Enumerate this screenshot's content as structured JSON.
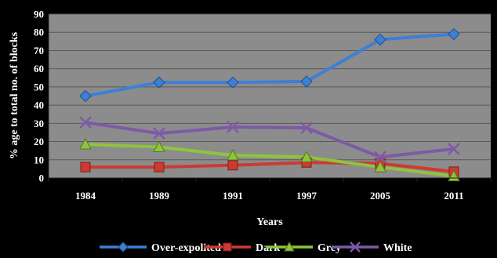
{
  "chart_data": {
    "type": "line",
    "categories": [
      "1984",
      "1989",
      "1991",
      "1997",
      "2005",
      "2011"
    ],
    "xlabel": "Years",
    "ylabel": "% age to total no. of blocks",
    "ylim": [
      0,
      90
    ],
    "yticks": [
      0,
      10,
      20,
      30,
      40,
      50,
      60,
      70,
      80,
      90
    ],
    "grid": true,
    "legend_position": "bottom",
    "series": [
      {
        "name": "Over-expolited",
        "values": [
          45,
          52.5,
          52.5,
          53,
          76,
          79
        ],
        "color": "#3e7fd6",
        "marker": "diamond"
      },
      {
        "name": "Dark",
        "values": [
          6,
          6,
          7,
          8.5,
          8,
          3.5
        ],
        "color": "#cc3a33",
        "marker": "square"
      },
      {
        "name": "Grey",
        "values": [
          18.5,
          17,
          12.5,
          11.5,
          6,
          1
        ],
        "color": "#8fc43d",
        "marker": "triangle"
      },
      {
        "name": "White",
        "values": [
          30.5,
          24.5,
          28,
          27.5,
          11.5,
          16
        ],
        "color": "#7d5aa6",
        "marker": "x"
      }
    ]
  }
}
